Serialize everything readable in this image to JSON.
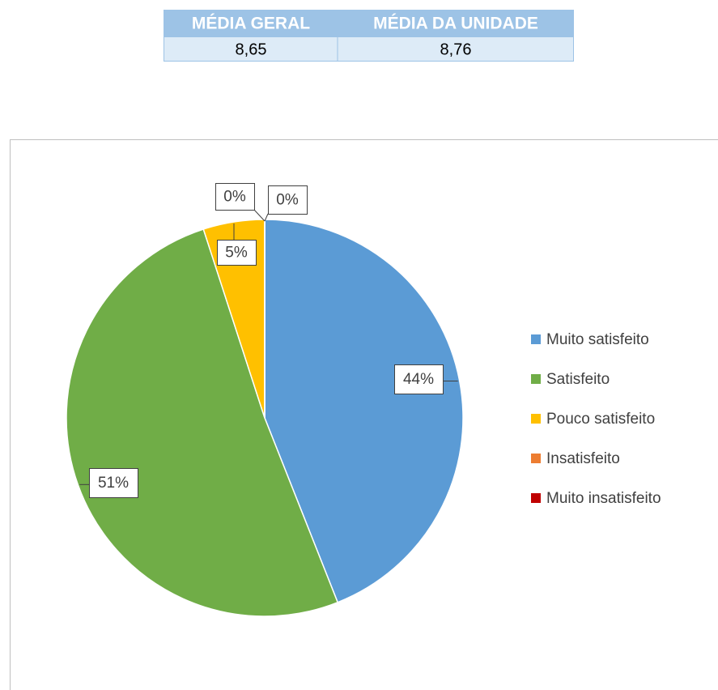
{
  "table": {
    "header": [
      "MÉDIA GERAL",
      "MÉDIA DA UNIDADE"
    ],
    "rows": [
      [
        "8,65",
        "8,76"
      ]
    ]
  },
  "chart_data": {
    "type": "pie",
    "categories": [
      "Muito satisfeito",
      "Satisfeito",
      "Pouco satisfeito",
      "Insatisfeito",
      "Muito insatisfeito"
    ],
    "values": [
      44,
      51,
      5,
      0,
      0
    ],
    "value_labels": [
      "44%",
      "51%",
      "5%",
      "0%",
      "0%"
    ],
    "colors": [
      "#5b9bd5",
      "#70ad47",
      "#ffc000",
      "#ed7d31",
      "#c00000"
    ],
    "legend": "right"
  }
}
